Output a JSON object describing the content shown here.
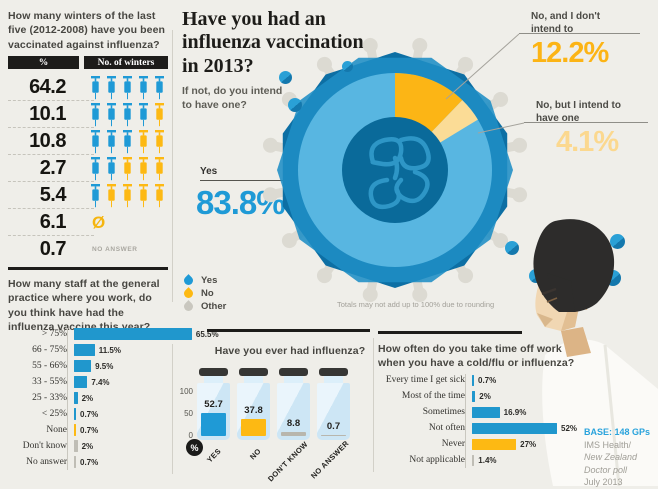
{
  "colors": {
    "blue": "#2097cd",
    "text_blue": "#1f9ad6",
    "yellow": "#fdb913",
    "light_yellow": "#fbd98e",
    "gray_bar": "#bfbdb5",
    "other_gray": "#c9c7bf",
    "bg": "#efeee9",
    "accent_orange": "#fcb415"
  },
  "q1": {
    "question": "How many winters of the last five (2012-2008) have you been vaccinated against influenza?",
    "col_pct": "%",
    "col_winters": "No. of winters",
    "no_answer_note": "NO ANSWER",
    "zero_symbol": "Ø",
    "rows": [
      {
        "pct": "64.2",
        "blue": 5,
        "yellow": 0
      },
      {
        "pct": "10.1",
        "blue": 4,
        "yellow": 1
      },
      {
        "pct": "10.8",
        "blue": 3,
        "yellow": 2
      },
      {
        "pct": "2.7",
        "blue": 2,
        "yellow": 3
      },
      {
        "pct": "5.4",
        "blue": 1,
        "yellow": 4
      },
      {
        "pct": "6.1",
        "zero": true
      },
      {
        "pct": "0.7",
        "note": "NO ANSWER"
      }
    ]
  },
  "q2": {
    "title": "Have you had an influenza vaccination in 2013?",
    "subtitle": "If not, do you intend to have one?",
    "yes_label": "Yes",
    "yes_value": "83.8%",
    "no1_label": "No, and I don't intend to",
    "no1_value": "12.2%",
    "no2_label": "No, but I intend to have one",
    "no2_value": "4.1%",
    "pie_values": [
      83.8,
      12.2,
      4.1
    ],
    "legend": [
      {
        "label": "Yes",
        "color": "#1f9ad6"
      },
      {
        "label": "No",
        "color": "#fdb913"
      },
      {
        "label": "Other",
        "color": "#c9c7bf"
      }
    ],
    "footnote": "Totals may not add up to 100% due to rounding"
  },
  "q3": {
    "question": "How many staff at the general practice where you work, do you think have had the influenza vaccine this year?",
    "rows": [
      {
        "label": "> 75%",
        "value": 65.5,
        "display": "65.5%",
        "color": "blue"
      },
      {
        "label": "66 - 75%",
        "value": 11.5,
        "display": "11.5%",
        "color": "blue"
      },
      {
        "label": "55 - 66%",
        "value": 9.5,
        "display": "9.5%",
        "color": "blue"
      },
      {
        "label": "33 - 55%",
        "value": 7.4,
        "display": "7.4%",
        "color": "blue"
      },
      {
        "label": "25 - 33%",
        "value": 2,
        "display": "2%",
        "color": "blue"
      },
      {
        "label": "< 25%",
        "value": 0.7,
        "display": "0.7%",
        "color": "blue"
      },
      {
        "label": "None",
        "value": 0.7,
        "display": "0.7%",
        "color": "yellow"
      },
      {
        "label": "Don't know",
        "value": 2,
        "display": "2%",
        "color": "gray_bar"
      },
      {
        "label": "No answer",
        "value": 0.7,
        "display": "0.7%",
        "color": "gray_bar"
      }
    ]
  },
  "q4": {
    "question": "Have you ever had influenza?",
    "y_ticks": [
      "100",
      "50",
      "0"
    ],
    "unit_badge": "%",
    "vials": [
      {
        "label": "YES",
        "value": 52.7,
        "display": "52.7",
        "color": "#1f9ad6"
      },
      {
        "label": "NO",
        "value": 37.8,
        "display": "37.8",
        "color": "#fdb913"
      },
      {
        "label": "DON'T KNOW",
        "value": 8.8,
        "display": "8.8",
        "color": "#b8b6ad"
      },
      {
        "label": "NO ANSWER",
        "value": 0.7,
        "display": "0.7",
        "color": "#b8b6ad"
      }
    ]
  },
  "q5": {
    "question": "How often do you take time off work when you have a cold/flu or influenza?",
    "rows": [
      {
        "label": "Every time I get sick",
        "value": 0.7,
        "display": "0.7%",
        "color": "blue"
      },
      {
        "label": "Most of the time",
        "value": 2,
        "display": "2%",
        "color": "blue"
      },
      {
        "label": "Sometimes",
        "value": 16.9,
        "display": "16.9%",
        "color": "blue"
      },
      {
        "label": "Not often",
        "value": 52,
        "display": "52%",
        "color": "blue"
      },
      {
        "label": "Never",
        "value": 27,
        "display": "27%",
        "color": "yellow"
      },
      {
        "label": "Not applicable",
        "value": 1.4,
        "display": "1.4%",
        "color": "gray_bar"
      }
    ]
  },
  "base": {
    "line1": "BASE: 148 GPs",
    "line2": "IMS Health/",
    "line3": "New Zealand",
    "line4": "Doctor poll",
    "line5": "July 2013"
  },
  "chart_data": [
    {
      "type": "table",
      "title": "How many winters of the last five (2012-2008) have you been vaccinated against influenza?",
      "columns": [
        "%",
        "No. of winters"
      ],
      "rows": [
        [
          64.2,
          "5 of 5"
        ],
        [
          10.1,
          "4 of 5"
        ],
        [
          10.8,
          "3 of 5"
        ],
        [
          2.7,
          "2 of 5"
        ],
        [
          5.4,
          "1 of 5"
        ],
        [
          6.1,
          "0 of 5"
        ],
        [
          0.7,
          "No answer"
        ]
      ]
    },
    {
      "type": "pie",
      "title": "Have you had an influenza vaccination in 2013?",
      "labels": [
        "Yes",
        "No, and I don't intend to",
        "No, but I intend to have one"
      ],
      "values": [
        83.8,
        12.2,
        4.1
      ],
      "annotation": "Totals may not add up to 100% due to rounding",
      "legend": [
        "Yes",
        "No",
        "Other"
      ]
    },
    {
      "type": "bar",
      "title": "How many staff at the general practice where you work, do you think have had the influenza vaccine this year?",
      "categories": [
        "> 75%",
        "66 - 75%",
        "55 - 66%",
        "33 - 55%",
        "25 - 33%",
        "< 25%",
        "None",
        "Don't know",
        "No answer"
      ],
      "values": [
        65.5,
        11.5,
        9.5,
        7.4,
        2,
        0.7,
        0.7,
        2,
        0.7
      ],
      "orientation": "horizontal",
      "unit": "%"
    },
    {
      "type": "bar",
      "title": "Have you ever had influenza?",
      "categories": [
        "Yes",
        "No",
        "Don't know",
        "No answer"
      ],
      "values": [
        52.7,
        37.8,
        8.8,
        0.7
      ],
      "ylabel": "%",
      "ylim": [
        0,
        100
      ]
    },
    {
      "type": "bar",
      "title": "How often do you take time off work when you have a cold/flu or influenza?",
      "categories": [
        "Every time I get sick",
        "Most of the time",
        "Sometimes",
        "Not often",
        "Never",
        "Not applicable"
      ],
      "values": [
        0.7,
        2,
        16.9,
        52,
        27,
        1.4
      ],
      "orientation": "horizontal",
      "unit": "%"
    }
  ]
}
